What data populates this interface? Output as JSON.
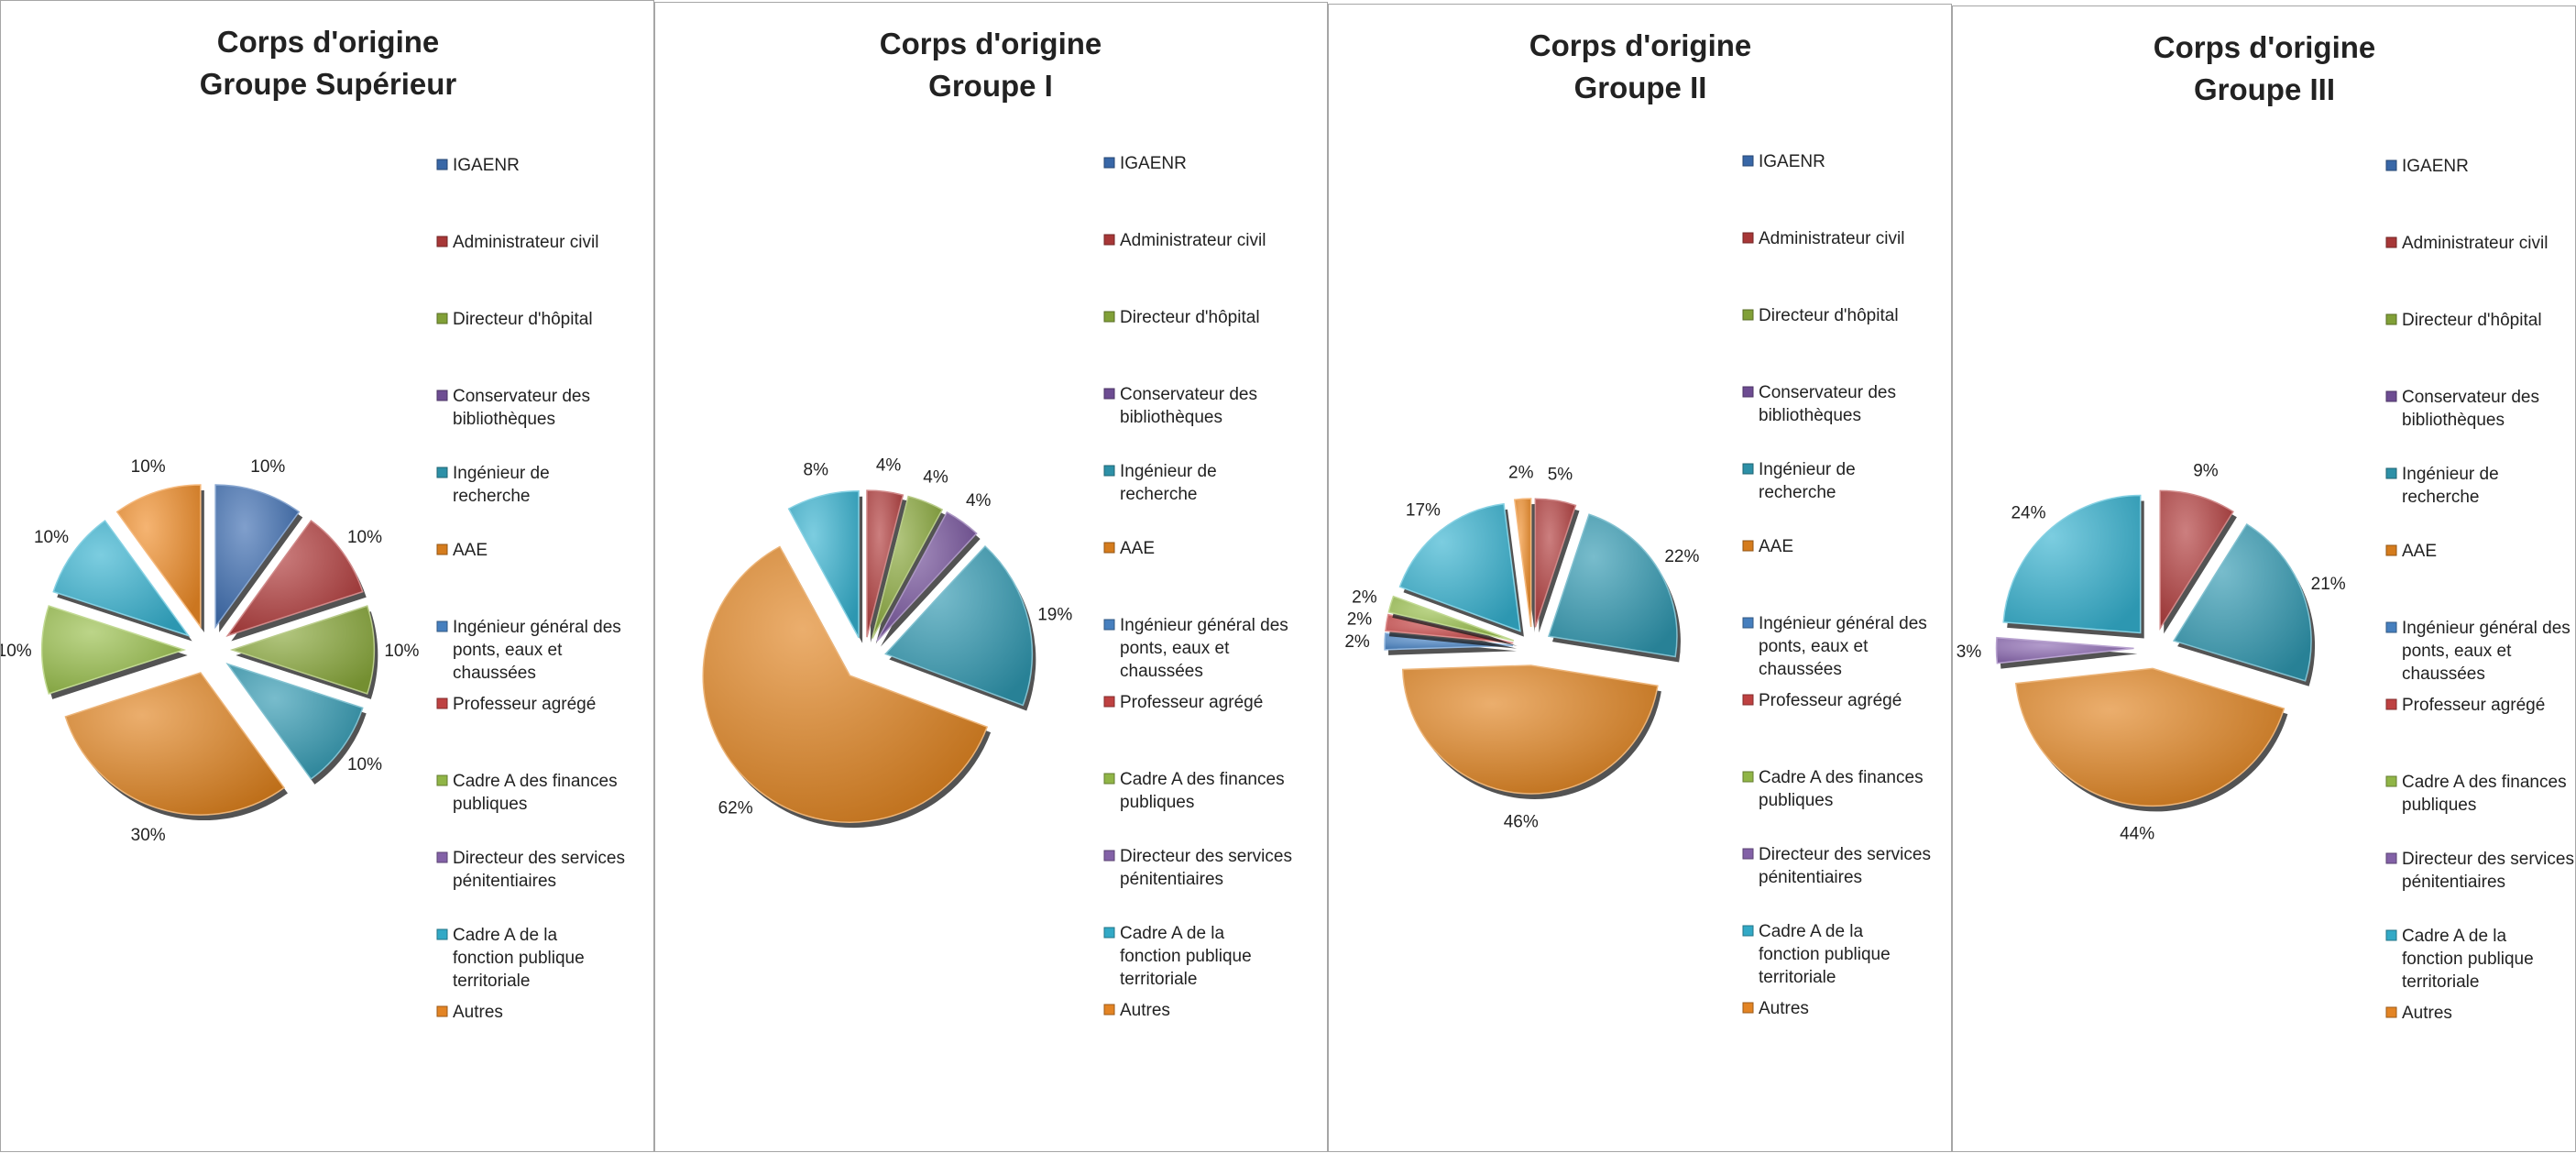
{
  "legend_items": [
    {
      "lines": [
        "IGAENR"
      ],
      "color": "#3b6cb0"
    },
    {
      "lines": [
        "Administrateur civil"
      ],
      "color": "#b03a3a"
    },
    {
      "lines": [
        "Directeur d'hôpital"
      ],
      "color": "#88a83a"
    },
    {
      "lines": [
        "Conservateur des",
        "bibliothèques"
      ],
      "color": "#73509a"
    },
    {
      "lines": [
        "Ingénieur de",
        "recherche"
      ],
      "color": "#2f98b0"
    },
    {
      "lines": [
        "AAE"
      ],
      "color": "#e0821e"
    },
    {
      "lines": [
        "Ingénieur général des",
        "ponts, eaux et",
        "chaussées"
      ],
      "color": "#4a86c8"
    },
    {
      "lines": [
        "Professeur agrégé"
      ],
      "color": "#c84444"
    },
    {
      "lines": [
        "Cadre A des finances",
        "publiques"
      ],
      "color": "#98bf4a"
    },
    {
      "lines": [
        "Directeur des services",
        "pénitentiaires"
      ],
      "color": "#8a66b0"
    },
    {
      "lines": [
        "Cadre A de la",
        "fonction publique",
        "territoriale"
      ],
      "color": "#35b2d0"
    },
    {
      "lines": [
        "Autres"
      ],
      "color": "#ef8b26"
    }
  ],
  "chart_data": [
    {
      "type": "pie",
      "title": [
        "Corps d'origine",
        "Groupe Supérieur"
      ],
      "legend_position": "right",
      "explode": 0.17,
      "slices": [
        {
          "category": "IGAENR",
          "value": 10,
          "label": "10%",
          "color": "#3b6cb0"
        },
        {
          "category": "Administrateur civil",
          "value": 10,
          "label": "10%",
          "color": "#b03a3a"
        },
        {
          "category": "Directeur d'hôpital",
          "value": 10,
          "label": "10%",
          "color": "#88a83a"
        },
        {
          "category": "Ingénieur de recherche",
          "value": 10,
          "label": "10%",
          "color": "#2f98b0"
        },
        {
          "category": "AAE",
          "value": 30,
          "label": "30%",
          "color": "#e0821e"
        },
        {
          "category": "Cadre A des finances publiques",
          "value": 10,
          "label": "10%",
          "color": "#98bf4a"
        },
        {
          "category": "Cadre A de la fonction publique territoriale",
          "value": 10,
          "label": "10%",
          "color": "#35b2d0"
        },
        {
          "category": "Autres",
          "value": 10,
          "label": "10%",
          "color": "#ef8b26"
        }
      ]
    },
    {
      "type": "pie",
      "title": [
        "Corps d'origine",
        "Groupe I"
      ],
      "legend_position": "right",
      "explode": 0.15,
      "slices": [
        {
          "category": "Administrateur civil",
          "value": 4,
          "label": "4%",
          "color": "#b03a3a"
        },
        {
          "category": "Directeur d'hôpital",
          "value": 4,
          "label": "4%",
          "color": "#88a83a"
        },
        {
          "category": "Conservateur des bibliothèques",
          "value": 4,
          "label": "4%",
          "color": "#73509a"
        },
        {
          "category": "Ingénieur de recherche",
          "value": 19,
          "label": "19%",
          "color": "#2f98b0"
        },
        {
          "category": "AAE",
          "value": 62,
          "label": "62%",
          "color": "#e0821e"
        },
        {
          "category": "Cadre A de la fonction publique territoriale",
          "value": 8,
          "label": "8%",
          "color": "#35b2d0"
        }
      ]
    },
    {
      "type": "pie",
      "title": [
        "Corps d'origine",
        "Groupe II"
      ],
      "legend_position": "right",
      "explode": 0.15,
      "slices": [
        {
          "category": "Administrateur civil",
          "value": 5,
          "label": "5%",
          "color": "#b03a3a"
        },
        {
          "category": "Ingénieur de recherche",
          "value": 22,
          "label": "22%",
          "color": "#2f98b0"
        },
        {
          "category": "AAE",
          "value": 46,
          "label": "46%",
          "color": "#e0821e"
        },
        {
          "category": "Ingénieur général des ponts, eaux et chaussées",
          "value": 2,
          "label": "2%",
          "color": "#4a86c8"
        },
        {
          "category": "Professeur agrégé",
          "value": 2,
          "label": "2%",
          "color": "#c84444"
        },
        {
          "category": "Cadre A des finances publiques",
          "value": 2,
          "label": "2%",
          "color": "#98bf4a"
        },
        {
          "category": "Cadre A de la fonction publique territoriale",
          "value": 17,
          "label": "17%",
          "color": "#35b2d0"
        },
        {
          "category": "Autres",
          "value": 2,
          "label": "2%",
          "color": "#ef8b26"
        }
      ]
    },
    {
      "type": "pie",
      "title": [
        "Corps d'origine",
        "Groupe III"
      ],
      "legend_position": "right",
      "explode": 0.15,
      "slices": [
        {
          "category": "Administrateur civil",
          "value": 9,
          "label": "9%",
          "color": "#b03a3a"
        },
        {
          "category": "Ingénieur de recherche",
          "value": 21,
          "label": "21%",
          "color": "#2f98b0"
        },
        {
          "category": "AAE",
          "value": 44,
          "label": "44%",
          "color": "#e0821e"
        },
        {
          "category": "Directeur des services pénitentiaires",
          "value": 3,
          "label": "3%",
          "color": "#8a66b0"
        },
        {
          "category": "Cadre A de la fonction publique territoriale",
          "value": 24,
          "label": "24%",
          "color": "#35b2d0"
        }
      ]
    }
  ]
}
